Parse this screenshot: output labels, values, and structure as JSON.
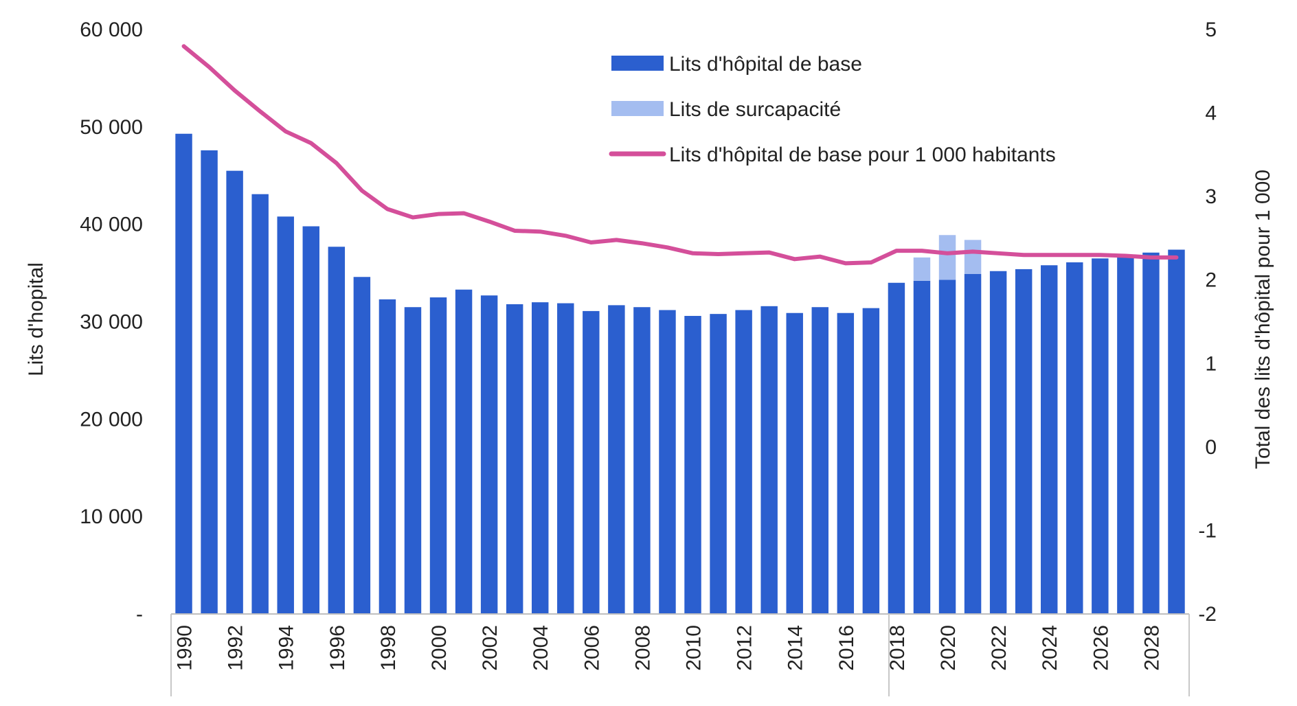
{
  "chart_data": {
    "type": "bar",
    "x": [
      "1990",
      "1991",
      "1992",
      "1993",
      "1994",
      "1995",
      "1996",
      "1997",
      "1998",
      "1999",
      "2000",
      "2001",
      "2002",
      "2003",
      "2004",
      "2005",
      "2006",
      "2007",
      "2008",
      "2009",
      "2010",
      "2011",
      "2012",
      "2013",
      "2014",
      "2015",
      "2016",
      "2017",
      "2018",
      "2019",
      "2020",
      "2021",
      "2022",
      "2023",
      "2024",
      "2025",
      "2026",
      "2027",
      "2028",
      "2029"
    ],
    "x_tick_labels": [
      "1990",
      "1992",
      "1994",
      "1996",
      "1998",
      "2000",
      "2002",
      "2004",
      "2006",
      "2008",
      "2010",
      "2012",
      "2014",
      "2016",
      "2018",
      "2020",
      "2022",
      "2024",
      "2026",
      "2028"
    ],
    "series": [
      {
        "name": "Lits d'hôpital de base",
        "type": "bar",
        "axis": "left",
        "color": "#2b5fcf",
        "values": [
          49300,
          47600,
          45500,
          43100,
          40800,
          39800,
          37700,
          34600,
          32300,
          31500,
          32500,
          33300,
          32700,
          31800,
          32000,
          31900,
          31100,
          31700,
          31500,
          31200,
          30600,
          30800,
          31200,
          31600,
          30900,
          31500,
          30900,
          31400,
          34000,
          34200,
          34300,
          34900,
          35200,
          35400,
          35800,
          36100,
          36500,
          36800,
          37100,
          37400
        ]
      },
      {
        "name": "Lits de surcapacité",
        "type": "bar",
        "axis": "left",
        "stacked": true,
        "color": "#a4bdf0",
        "values": [
          0,
          0,
          0,
          0,
          0,
          0,
          0,
          0,
          0,
          0,
          0,
          0,
          0,
          0,
          0,
          0,
          0,
          0,
          0,
          0,
          0,
          0,
          0,
          0,
          0,
          0,
          0,
          0,
          0,
          2400,
          4600,
          3500,
          0,
          0,
          0,
          0,
          0,
          0,
          0,
          0
        ]
      },
      {
        "name": "Lits d'hôpital de base pour 1 000 habitants",
        "type": "line",
        "axis": "right",
        "color": "#d44f9a",
        "values": [
          4.8,
          4.55,
          4.27,
          4.02,
          3.78,
          3.64,
          3.4,
          3.07,
          2.85,
          2.75,
          2.79,
          2.8,
          2.7,
          2.59,
          2.58,
          2.53,
          2.45,
          2.48,
          2.44,
          2.39,
          2.32,
          2.31,
          2.32,
          2.33,
          2.25,
          2.28,
          2.2,
          2.21,
          2.35,
          2.35,
          2.32,
          2.34,
          2.32,
          2.3,
          2.3,
          2.3,
          2.3,
          2.29,
          2.27,
          2.27
        ]
      }
    ],
    "y_left": {
      "label": "Lits d'hopital",
      "lim": [
        0,
        60000
      ],
      "ticks": [
        0,
        10000,
        20000,
        30000,
        40000,
        50000,
        60000
      ],
      "tick_labels": [
        "-",
        "10 000",
        "20 000",
        "30 000",
        "40 000",
        "50 000",
        "60 000"
      ]
    },
    "y_right": {
      "label": "Total des lits d'hôpital pour 1 000",
      "lim": [
        -2,
        5
      ],
      "ticks": [
        -2,
        -1,
        0,
        1,
        2,
        3,
        4,
        5
      ],
      "tick_labels": [
        "-2",
        "-1",
        "0",
        "1",
        "2",
        "3",
        "4",
        "5"
      ]
    },
    "legend": {
      "placement": "top-center"
    },
    "grid": false
  }
}
